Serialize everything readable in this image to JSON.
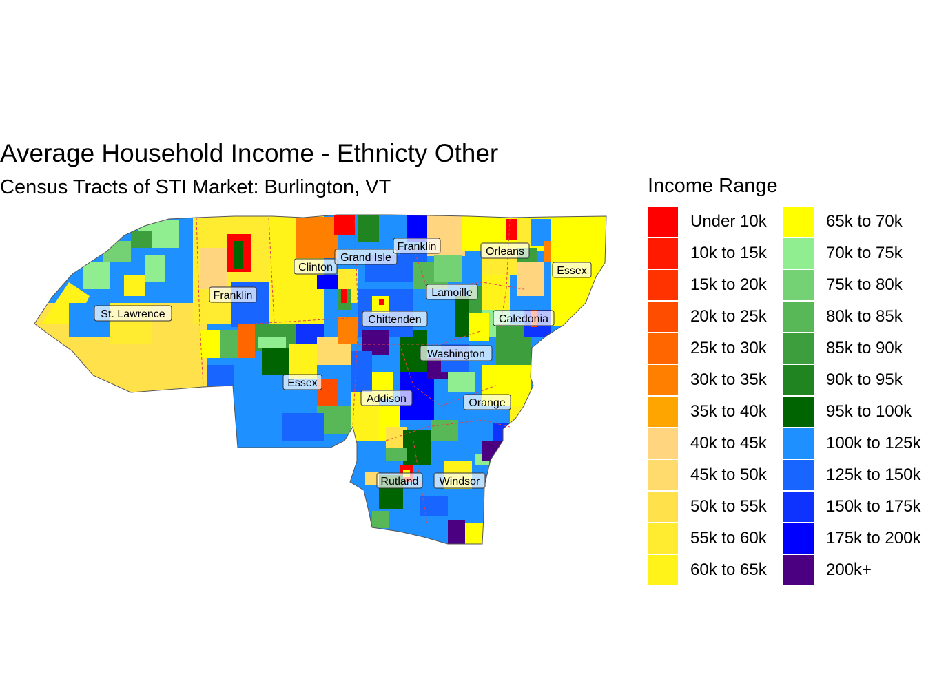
{
  "title": "Average Household Income - Ethnicty Other",
  "subtitle": "Census Tracts of STI Market: Burlington, VT",
  "legend": {
    "title": "Income Range",
    "items": [
      {
        "label": "Under 10k",
        "color": "#FF0000"
      },
      {
        "label": "10k to 15k",
        "color": "#FF1A00"
      },
      {
        "label": "15k to 20k",
        "color": "#FF3300"
      },
      {
        "label": "20k to 25k",
        "color": "#FF4D00"
      },
      {
        "label": "25k to 30k",
        "color": "#FF6600"
      },
      {
        "label": "30k to 35k",
        "color": "#FF8000"
      },
      {
        "label": "35k to 40k",
        "color": "#FFA500"
      },
      {
        "label": "40k to 45k",
        "color": "#FFD580"
      },
      {
        "label": "45k to 50k",
        "color": "#FFDB6E"
      },
      {
        "label": "50k to 55k",
        "color": "#FFE24B"
      },
      {
        "label": "55k to 60k",
        "color": "#FFEB30"
      },
      {
        "label": "60k to 65k",
        "color": "#FFF31A"
      },
      {
        "label": "65k to 70k",
        "color": "#FFFF00"
      },
      {
        "label": "70k to 75k",
        "color": "#90EE90"
      },
      {
        "label": "75k to 80k",
        "color": "#74D274"
      },
      {
        "label": "80k to 85k",
        "color": "#58B858"
      },
      {
        "label": "85k to 90k",
        "color": "#3C9E3C"
      },
      {
        "label": "90k to 95k",
        "color": "#208420"
      },
      {
        "label": "95k to 100k",
        "color": "#006400"
      },
      {
        "label": "100k to 125k",
        "color": "#1E90FF"
      },
      {
        "label": "125k to 150k",
        "color": "#1866FF"
      },
      {
        "label": "150k to 175k",
        "color": "#0F33FF"
      },
      {
        "label": "175k to 200k",
        "color": "#0000FF"
      },
      {
        "label": "200k+",
        "color": "#4B0082"
      }
    ]
  },
  "map": {
    "county_labels": [
      "St. Lawrence",
      "Franklin",
      "Clinton",
      "Grand Isle",
      "Franklin",
      "Orleans",
      "Essex",
      "Lamoille",
      "Chittenden",
      "Caledonia",
      "Washington",
      "Essex",
      "Addison",
      "Orange",
      "Rutland",
      "Windsor"
    ],
    "colors": {
      "county_border": "#E0404A",
      "label_box": "#FFFFFF",
      "label_border": "#333333",
      "outline": "#555555"
    }
  }
}
